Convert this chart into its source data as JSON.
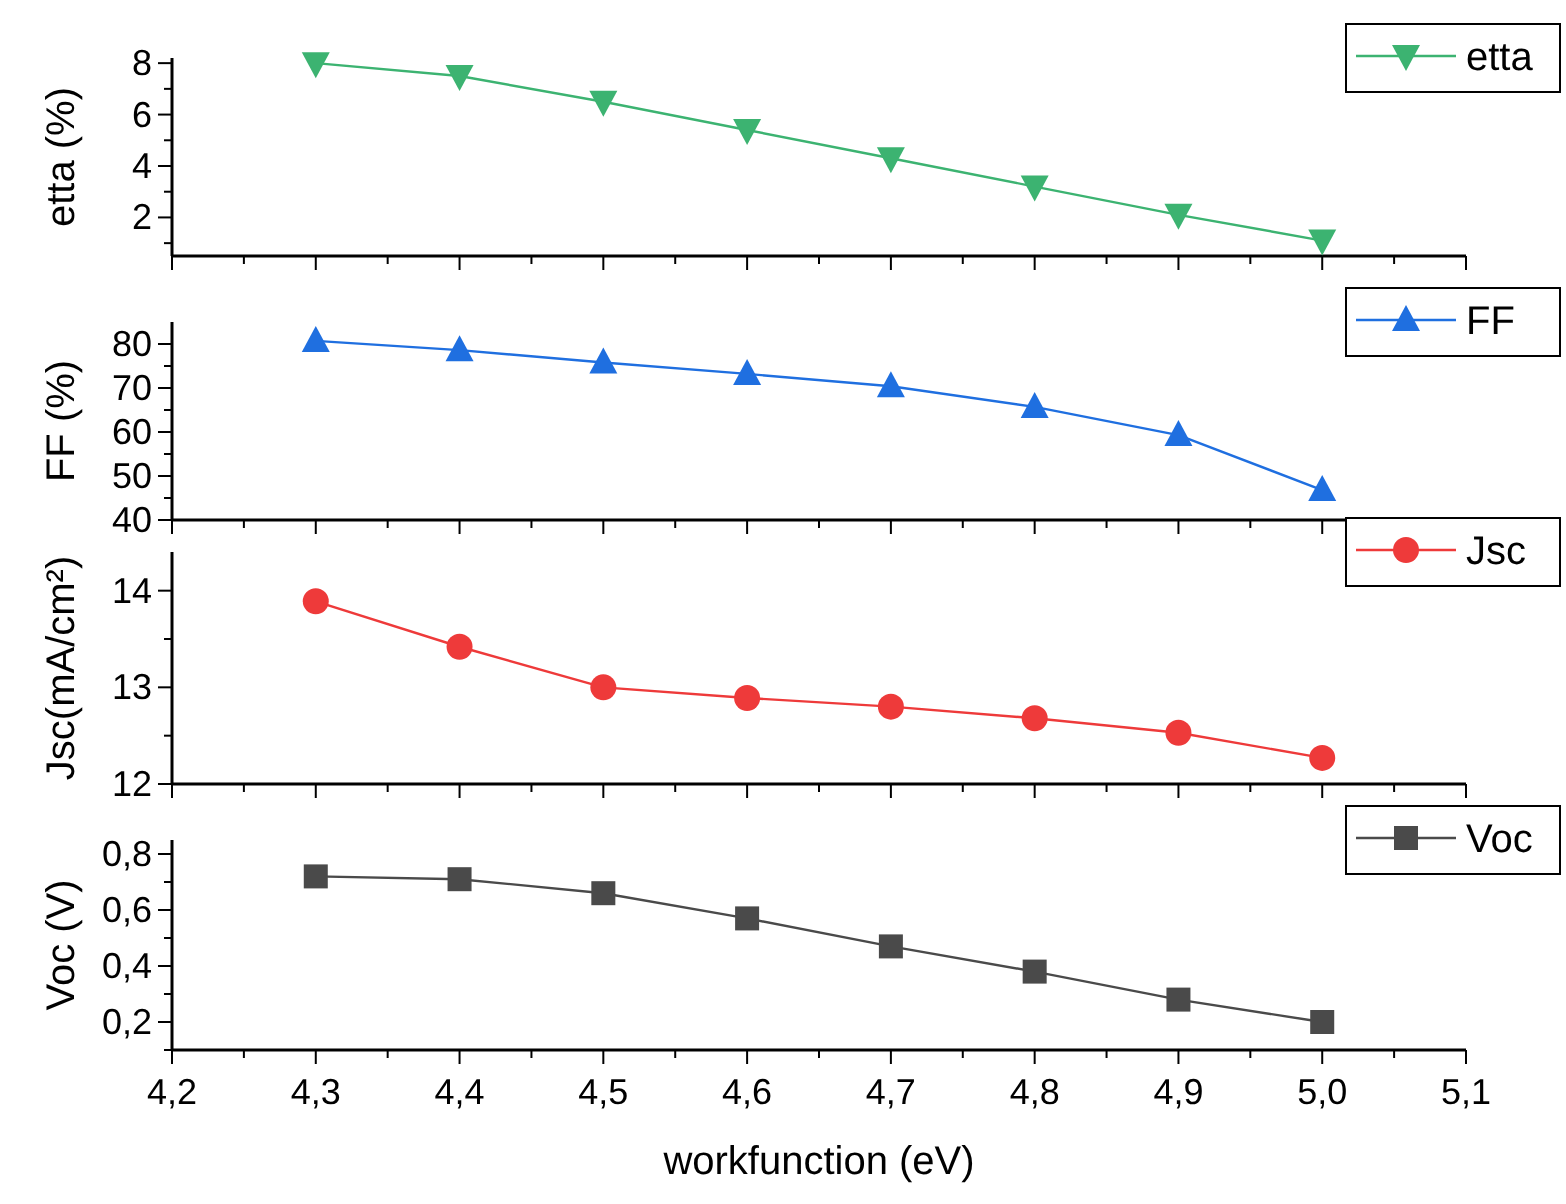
{
  "chart_data": [
    {
      "type": "line",
      "ylabel": "etta (%)",
      "x": [
        4.3,
        4.4,
        4.5,
        4.6,
        4.7,
        4.8,
        4.9,
        5.0
      ],
      "xlim": [
        4.2,
        5.1
      ],
      "xticks": [
        {
          "value": 4.2,
          "label": null
        },
        {
          "value": 4.25,
          "label": null
        },
        {
          "value": 4.3,
          "label": null
        },
        {
          "value": 4.35,
          "label": null
        },
        {
          "value": 4.4,
          "label": null
        },
        {
          "value": 4.45,
          "label": null
        },
        {
          "value": 4.5,
          "label": null
        },
        {
          "value": 4.55,
          "label": null
        },
        {
          "value": 4.6,
          "label": null
        },
        {
          "value": 4.65,
          "label": null
        },
        {
          "value": 4.7,
          "label": null
        },
        {
          "value": 4.75,
          "label": null
        },
        {
          "value": 4.8,
          "label": null
        },
        {
          "value": 4.85,
          "label": null
        },
        {
          "value": 4.9,
          "label": null
        },
        {
          "value": 4.95,
          "label": null
        },
        {
          "value": 5.0,
          "label": null
        },
        {
          "value": 5.05,
          "label": null
        },
        {
          "value": 5.1,
          "label": null
        }
      ],
      "ylim": [
        0.5,
        8.2
      ],
      "yticks": [
        {
          "value": 1,
          "label": null
        },
        2,
        {
          "value": 3,
          "label": null
        },
        4,
        {
          "value": 5,
          "label": null
        },
        6,
        {
          "value": 7,
          "label": null
        },
        8
      ],
      "tick_labels": "y",
      "legend": "top right",
      "grid": false,
      "series": [
        {
          "name": "etta",
          "color": "#3cb371",
          "marker": "triangle-down",
          "values": [
            8.0,
            7.5,
            6.5,
            5.4,
            4.3,
            3.2,
            2.1,
            1.1
          ]
        }
      ]
    },
    {
      "type": "line",
      "ylabel": "FF (%)",
      "x": [
        4.3,
        4.4,
        4.5,
        4.6,
        4.7,
        4.8,
        4.9,
        5.0
      ],
      "xlim": [
        4.2,
        5.1
      ],
      "xticks": [
        {
          "value": 4.2,
          "label": null
        },
        {
          "value": 4.25,
          "label": null
        },
        {
          "value": 4.3,
          "label": null
        },
        {
          "value": 4.35,
          "label": null
        },
        {
          "value": 4.4,
          "label": null
        },
        {
          "value": 4.45,
          "label": null
        },
        {
          "value": 4.5,
          "label": null
        },
        {
          "value": 4.55,
          "label": null
        },
        {
          "value": 4.6,
          "label": null
        },
        {
          "value": 4.65,
          "label": null
        },
        {
          "value": 4.7,
          "label": null
        },
        {
          "value": 4.75,
          "label": null
        },
        {
          "value": 4.8,
          "label": null
        },
        {
          "value": 4.85,
          "label": null
        },
        {
          "value": 4.9,
          "label": null
        },
        {
          "value": 4.95,
          "label": null
        },
        {
          "value": 5.0,
          "label": null
        },
        {
          "value": 5.05,
          "label": null
        },
        {
          "value": 5.1,
          "label": null
        }
      ],
      "ylim": [
        40,
        85
      ],
      "yticks": [
        40,
        {
          "value": 45,
          "label": null
        },
        50,
        {
          "value": 55,
          "label": null
        },
        60,
        {
          "value": 65,
          "label": null
        },
        70,
        {
          "value": 75,
          "label": null
        },
        80
      ],
      "tick_labels": "y",
      "legend": "top right",
      "grid": false,
      "series": [
        {
          "name": "FF",
          "color": "#1f6fe0",
          "marker": "triangle",
          "values": [
            80.7,
            78.6,
            75.8,
            73.2,
            70.4,
            65.7,
            59.3,
            46.8
          ]
        }
      ]
    },
    {
      "type": "line",
      "ylabel": "Jsc(mA/cm²)",
      "x": [
        4.3,
        4.4,
        4.5,
        4.6,
        4.7,
        4.8,
        4.9,
        5.0
      ],
      "xlim": [
        4.2,
        5.1
      ],
      "xticks": [
        {
          "value": 4.2,
          "label": null
        },
        {
          "value": 4.25,
          "label": null
        },
        {
          "value": 4.3,
          "label": null
        },
        {
          "value": 4.35,
          "label": null
        },
        {
          "value": 4.4,
          "label": null
        },
        {
          "value": 4.45,
          "label": null
        },
        {
          "value": 4.5,
          "label": null
        },
        {
          "value": 4.55,
          "label": null
        },
        {
          "value": 4.6,
          "label": null
        },
        {
          "value": 4.65,
          "label": null
        },
        {
          "value": 4.7,
          "label": null
        },
        {
          "value": 4.75,
          "label": null
        },
        {
          "value": 4.8,
          "label": null
        },
        {
          "value": 4.85,
          "label": null
        },
        {
          "value": 4.9,
          "label": null
        },
        {
          "value": 4.95,
          "label": null
        },
        {
          "value": 5.0,
          "label": null
        },
        {
          "value": 5.05,
          "label": null
        },
        {
          "value": 5.1,
          "label": null
        }
      ],
      "ylim": [
        12,
        14.4
      ],
      "yticks": [
        12,
        {
          "value": 12.5,
          "label": null
        },
        13,
        {
          "value": 13.5,
          "label": null
        },
        14
      ],
      "tick_labels": "y",
      "legend": "top right",
      "grid": false,
      "series": [
        {
          "name": "Jsc",
          "color": "#ee3a3a",
          "marker": "circle",
          "values": [
            13.89,
            13.42,
            13.0,
            12.89,
            12.8,
            12.68,
            12.53,
            12.27
          ]
        }
      ]
    },
    {
      "type": "line",
      "xlabel": "workfunction (eV)",
      "ylabel": "Voc (V)",
      "x": [
        4.3,
        4.4,
        4.5,
        4.6,
        4.7,
        4.8,
        4.9,
        5.0
      ],
      "xlim": [
        4.2,
        5.1
      ],
      "xticks": [
        {
          "value": 4.2,
          "label": "4,2"
        },
        {
          "value": 4.25,
          "label": null
        },
        {
          "value": 4.3,
          "label": "4,3"
        },
        {
          "value": 4.35,
          "label": null
        },
        {
          "value": 4.4,
          "label": "4,4"
        },
        {
          "value": 4.45,
          "label": null
        },
        {
          "value": 4.5,
          "label": "4,5"
        },
        {
          "value": 4.55,
          "label": null
        },
        {
          "value": 4.6,
          "label": "4,6"
        },
        {
          "value": 4.65,
          "label": null
        },
        {
          "value": 4.7,
          "label": "4,7"
        },
        {
          "value": 4.75,
          "label": null
        },
        {
          "value": 4.8,
          "label": "4,8"
        },
        {
          "value": 4.85,
          "label": null
        },
        {
          "value": 4.9,
          "label": "4,9"
        },
        {
          "value": 4.95,
          "label": null
        },
        {
          "value": 5.0,
          "label": "5,0"
        },
        {
          "value": 5.05,
          "label": null
        },
        {
          "value": 5.1,
          "label": "5,1"
        }
      ],
      "ylim": [
        0.1,
        0.85
      ],
      "yticks": [
        {
          "value": 0.1,
          "label": null
        },
        {
          "value": 0.2,
          "label": "0,2"
        },
        {
          "value": 0.3,
          "label": null
        },
        {
          "value": 0.4,
          "label": "0,4"
        },
        {
          "value": 0.5,
          "label": null
        },
        {
          "value": 0.6,
          "label": "0,6"
        },
        {
          "value": 0.7,
          "label": null
        },
        {
          "value": 0.8,
          "label": "0,8"
        }
      ],
      "legend": "top right",
      "grid": false,
      "series": [
        {
          "name": "Voc",
          "color": "#4a4a4a",
          "marker": "square",
          "values": [
            0.72,
            0.71,
            0.66,
            0.57,
            0.47,
            0.38,
            0.28,
            0.2
          ]
        }
      ]
    }
  ]
}
